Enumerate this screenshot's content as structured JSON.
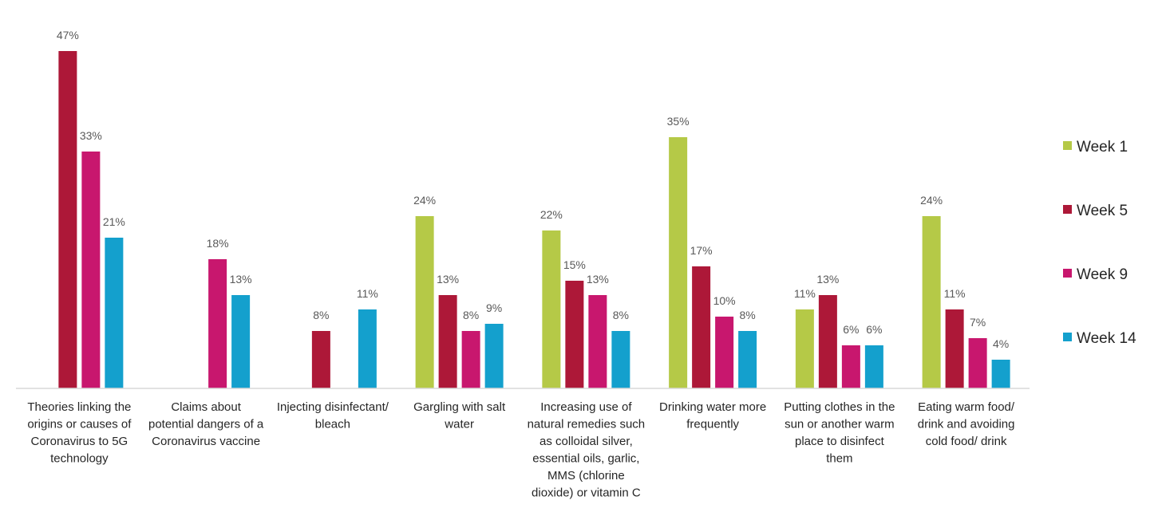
{
  "chart_data": {
    "type": "bar",
    "title": "",
    "xlabel": "",
    "ylabel": "",
    "ylim": [
      0,
      50
    ],
    "grid": false,
    "legend_position": "right",
    "categories": [
      "Theories linking the origins or causes of Coronavirus to 5G technology",
      "Claims about potential dangers of a Coronavirus vaccine",
      "Injecting disinfectant/ bleach",
      "Gargling with salt water",
      "Increasing use of natural remedies such as colloidal silver, essential oils, garlic, MMS (chlorine dioxide) or vitamin C",
      "Drinking water more frequently",
      "Putting clothes in the sun or another warm place to disinfect them",
      "Eating warm food/ drink and avoiding cold food/ drink"
    ],
    "category_lines": [
      [
        "Theories linking the",
        "origins or causes of",
        "Coronavirus to 5G",
        "technology"
      ],
      [
        "Claims about",
        "potential dangers of a",
        "Coronavirus vaccine"
      ],
      [
        "Injecting disinfectant/",
        "bleach"
      ],
      [
        "Gargling with salt",
        "water"
      ],
      [
        "Increasing use of",
        "natural remedies such",
        "as colloidal silver,",
        "essential oils, garlic,",
        "MMS (chlorine",
        "dioxide) or vitamin C"
      ],
      [
        "Drinking water more",
        "frequently"
      ],
      [
        "Putting clothes in the",
        "sun or another warm",
        "place to disinfect",
        "them"
      ],
      [
        "Eating warm food/",
        "drink and avoiding",
        "cold food/ drink"
      ]
    ],
    "series": [
      {
        "name": "Week 1",
        "color": "#b5c947",
        "values": [
          null,
          null,
          null,
          24,
          22,
          35,
          11,
          24
        ]
      },
      {
        "name": "Week 5",
        "color": "#ad1838",
        "values": [
          47,
          null,
          8,
          13,
          15,
          17,
          13,
          11
        ]
      },
      {
        "name": "Week 9",
        "color": "#c8176e",
        "values": [
          33,
          18,
          null,
          8,
          13,
          10,
          6,
          7
        ]
      },
      {
        "name": "Week 14",
        "color": "#14a0cd",
        "values": [
          21,
          13,
          11,
          9,
          8,
          8,
          6,
          4
        ]
      }
    ],
    "value_suffix": "%"
  }
}
